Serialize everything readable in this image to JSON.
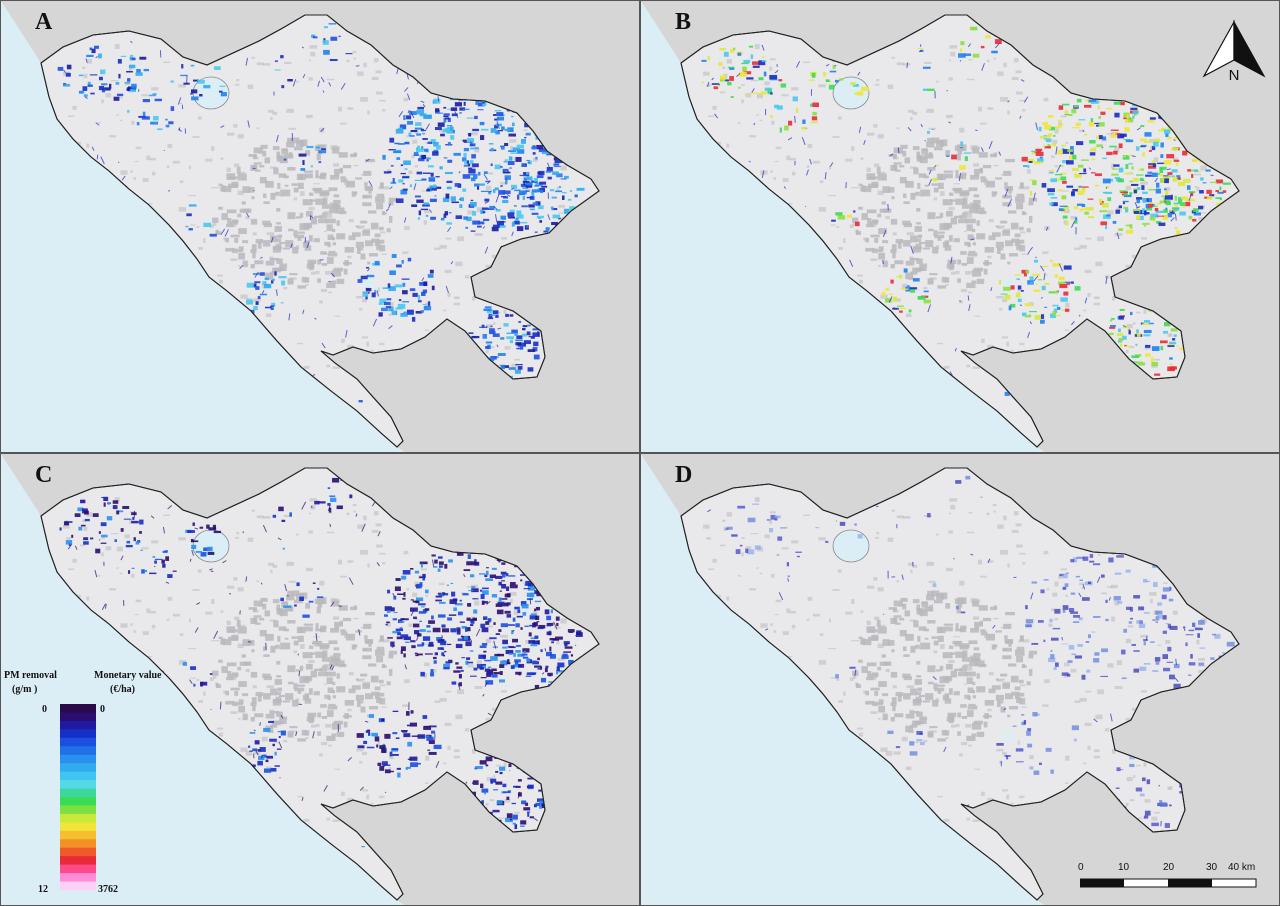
{
  "panels": [
    {
      "label": "A",
      "scheme": "A"
    },
    {
      "label": "B",
      "scheme": "B"
    },
    {
      "label": "C",
      "scheme": "C"
    },
    {
      "label": "D",
      "scheme": "D"
    }
  ],
  "north_arrow": {
    "letter": "N"
  },
  "legend": {
    "left_title": "PM   removal",
    "left_unit": "(g/m )",
    "right_title": "Monetary value",
    "right_unit": "(€/ha)",
    "left_min": "0",
    "left_max": "12",
    "right_min": "0",
    "right_max": "3762",
    "ramp_colors": [
      "#2b0a4a",
      "#2a0d6e",
      "#1f1aa0",
      "#1530c8",
      "#1a4fe0",
      "#2070e8",
      "#2890ee",
      "#32aaf0",
      "#40c4f0",
      "#55d8e8",
      "#3cd89a",
      "#3adc55",
      "#7ce040",
      "#c8e83a",
      "#f0e63a",
      "#f4c030",
      "#f49028",
      "#f05a28",
      "#e82a3a",
      "#ff4a8a",
      "#ff8ad8",
      "#ffd0f4"
    ]
  },
  "scale_bar": {
    "ticks": [
      "0",
      "10",
      "20",
      "30",
      "40 km"
    ]
  },
  "colors": {
    "sea": "#dceef5",
    "outside": "#d6d6d6",
    "land": "#e9e9ec",
    "urban": "#b9b9bd",
    "border": "#222222"
  }
}
